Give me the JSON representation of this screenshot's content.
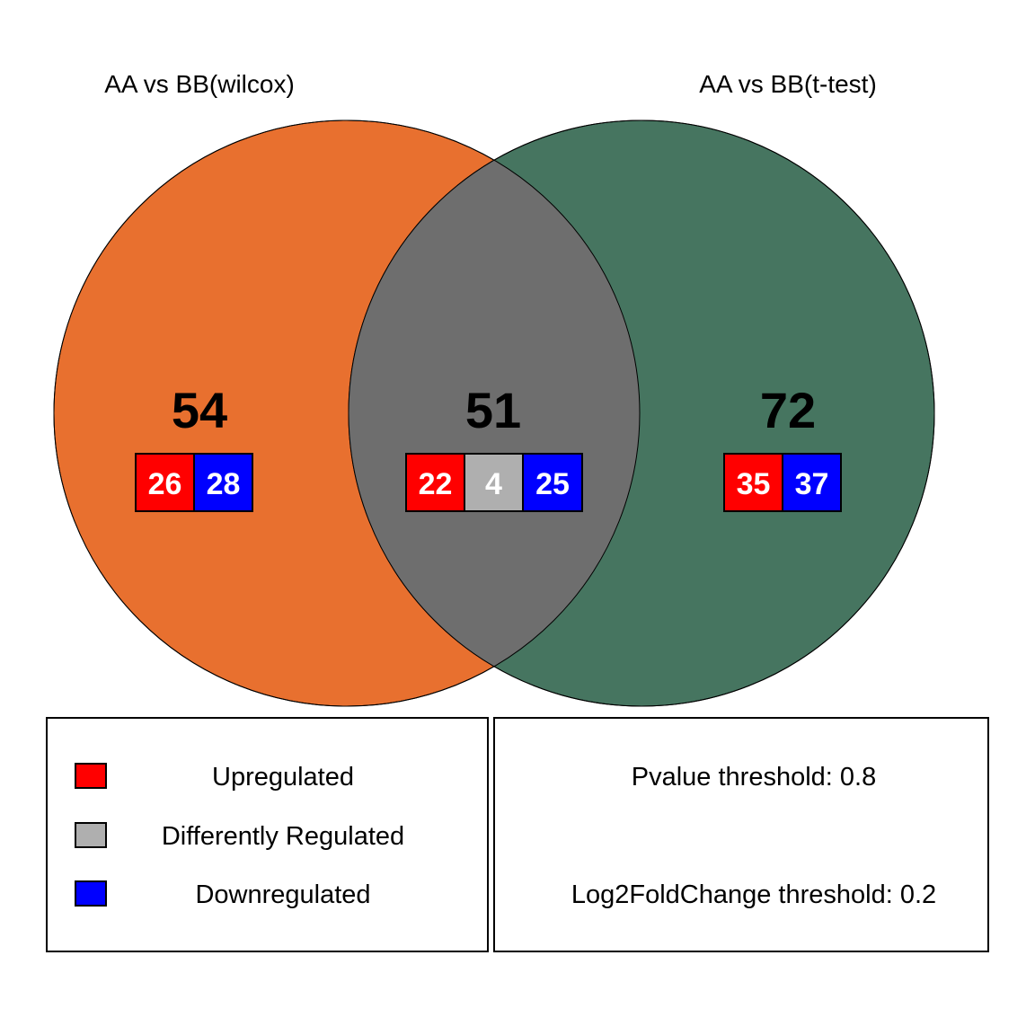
{
  "sets": [
    {
      "label": "AA vs BB(wilcox)",
      "color": "#E8702F"
    },
    {
      "label": "AA vs BB(t-test)",
      "color": "#467560"
    }
  ],
  "overlap_color": "#6E6E6E",
  "regions": {
    "left_only": {
      "total": "54",
      "up": "26",
      "down": "28"
    },
    "intersection": {
      "total": "51",
      "up": "22",
      "diff": "4",
      "down": "25"
    },
    "right_only": {
      "total": "72",
      "up": "35",
      "down": "37"
    }
  },
  "colors": {
    "up": "#FF0000",
    "diff": "#AFAFAF",
    "down": "#0000FF"
  },
  "legend": {
    "up": "Upregulated",
    "diff": "Differently Regulated",
    "down": "Downregulated"
  },
  "thresholds": {
    "pvalue": "Pvalue threshold: 0.8",
    "log2fc": "Log2FoldChange threshold: 0.2"
  }
}
